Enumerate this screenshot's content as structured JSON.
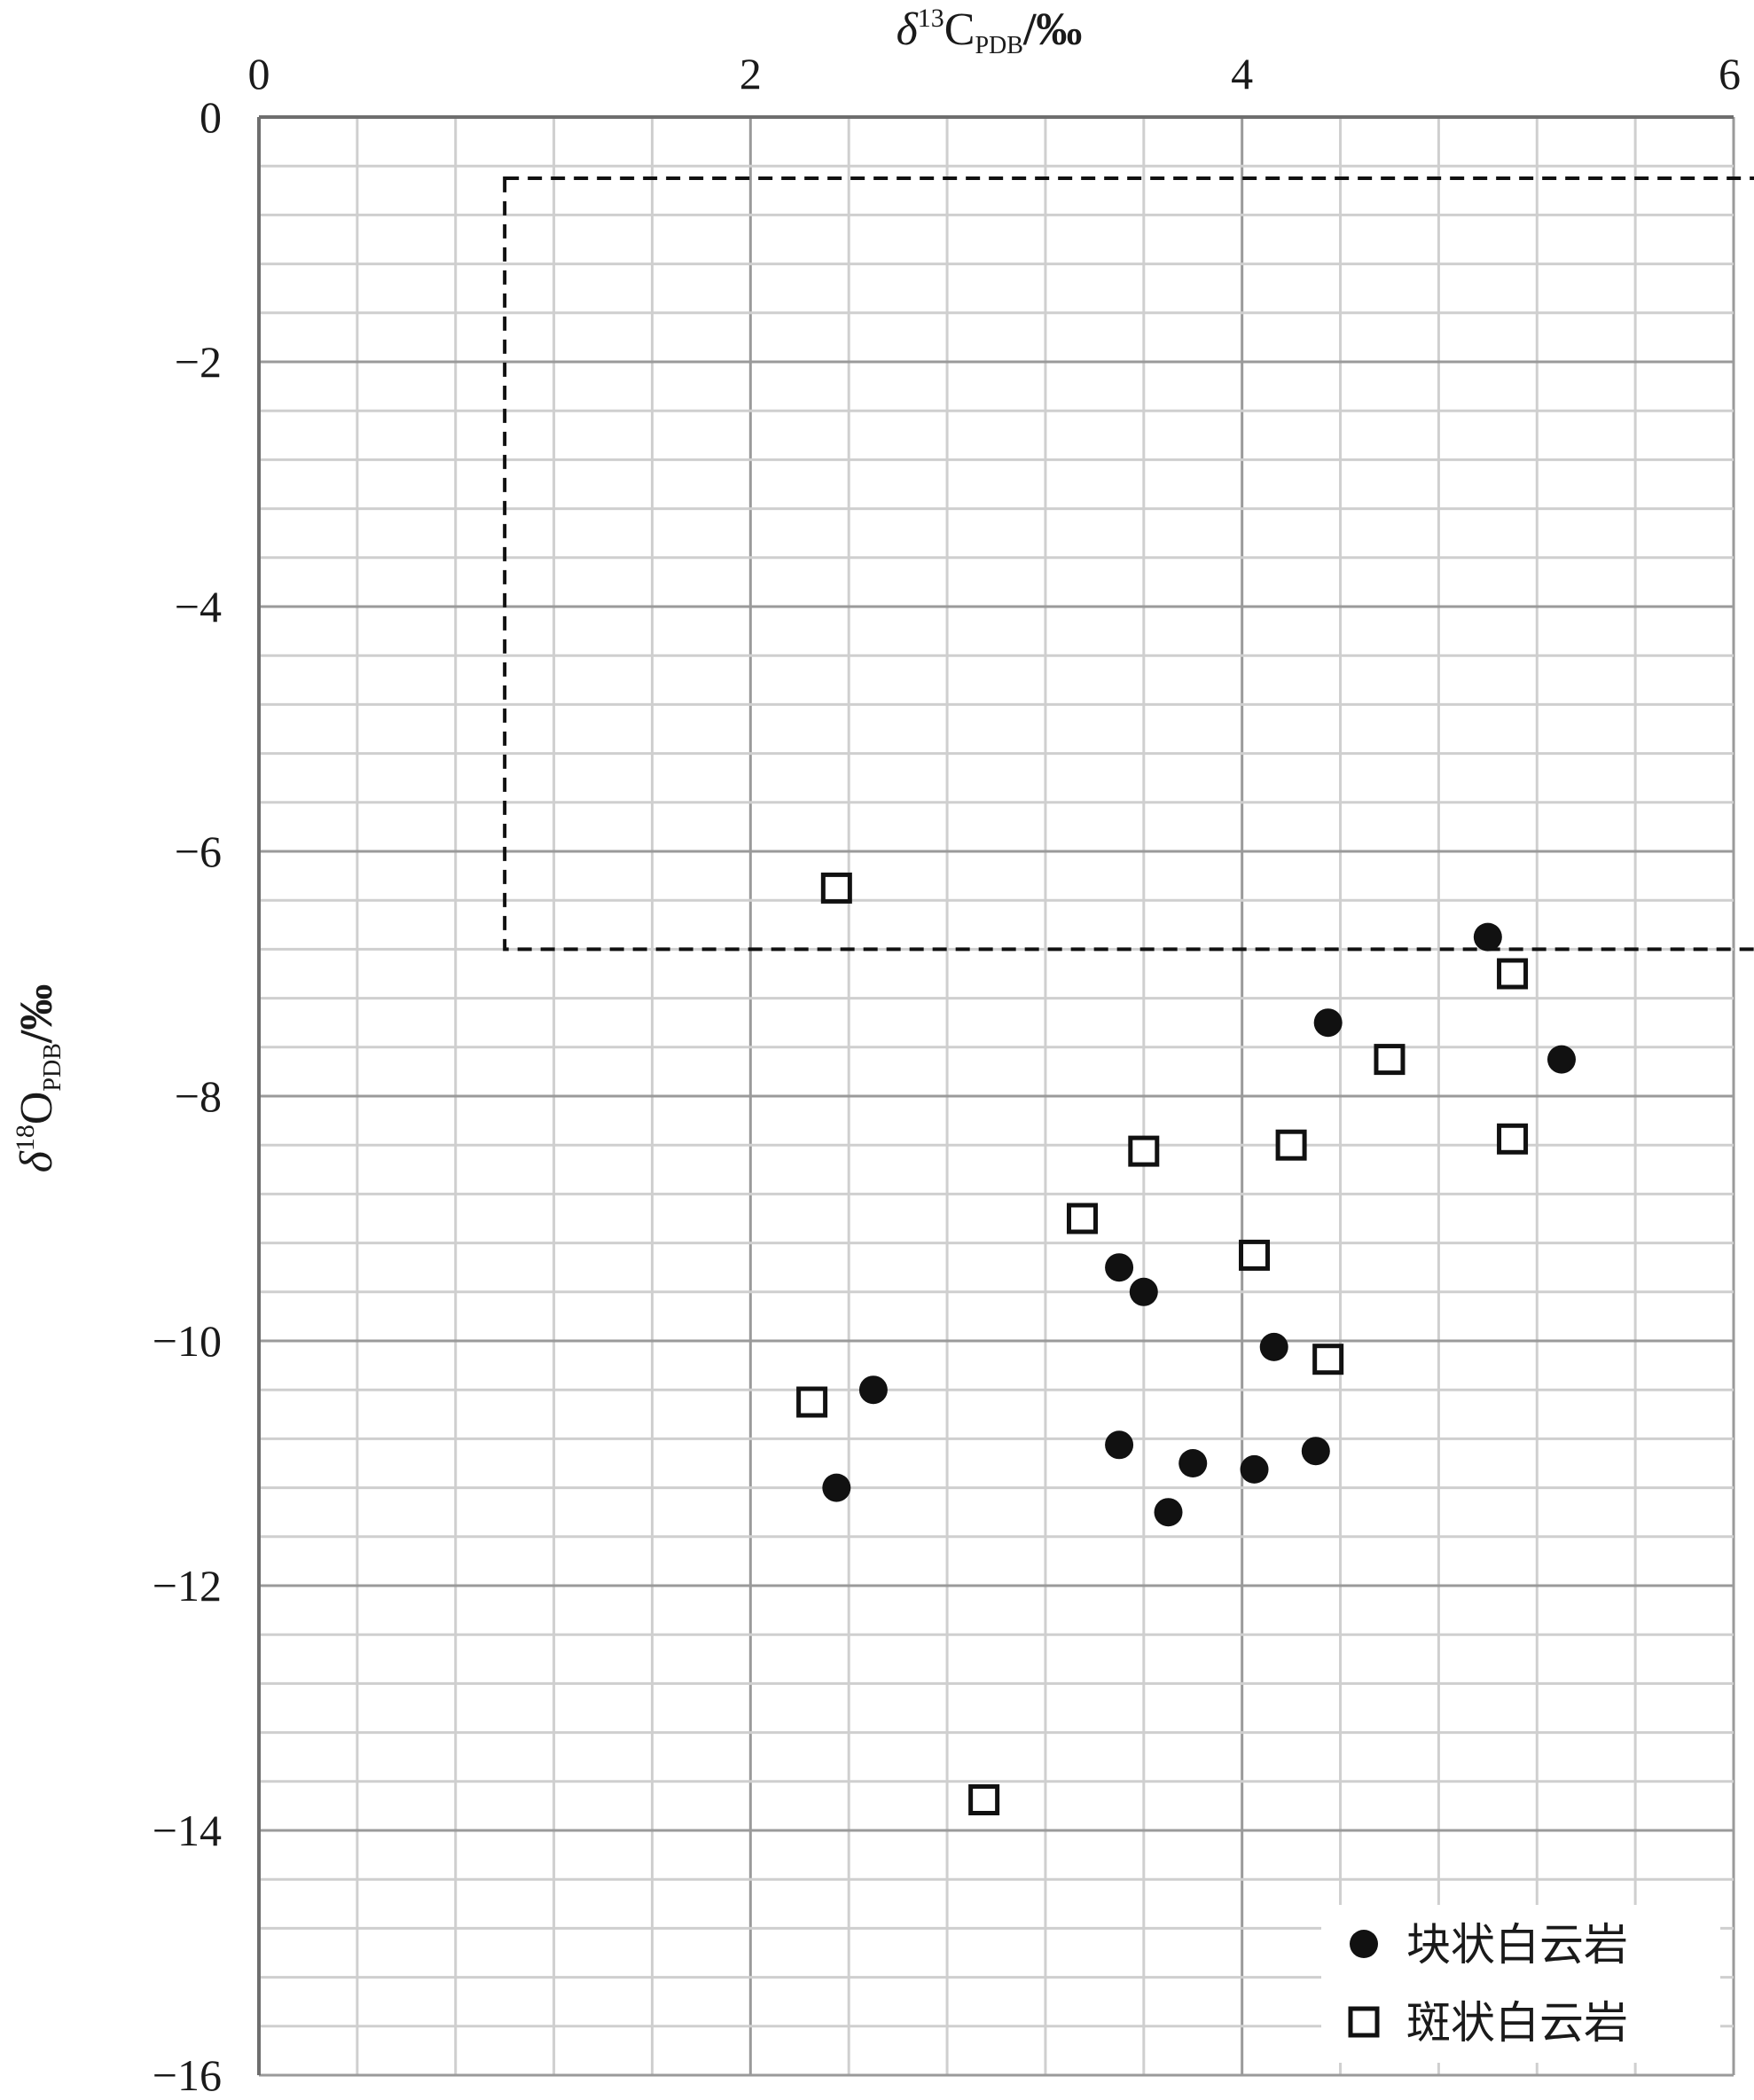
{
  "chart_data": {
    "type": "scatter",
    "title": "",
    "x_axis": {
      "label_prefix": "δ",
      "label_sup": "13",
      "label_main": "C",
      "label_sub": "PDB",
      "label_suffix": "/‰",
      "position": "top",
      "range": [
        0,
        6
      ],
      "ticks": [
        0,
        2,
        4,
        6
      ],
      "tick_labels": [
        "0",
        "2",
        "4",
        "6"
      ],
      "minor_step": 0.4
    },
    "y_axis": {
      "label_prefix": "δ",
      "label_sup": "18",
      "label_main": "O",
      "label_sub": "PDB",
      "label_suffix": "/‰",
      "position": "left",
      "range": [
        -16,
        0
      ],
      "ticks": [
        0,
        -2,
        -4,
        -6,
        -8,
        -10,
        -12,
        -14,
        -16
      ],
      "tick_labels": [
        "0",
        "−2",
        "−4",
        "−6",
        "−8",
        "−10",
        "−12",
        "−14",
        "−16"
      ],
      "minor_step": 0.4
    },
    "grid": true,
    "legend": {
      "placement": "bottom-right"
    },
    "reference_region": {
      "style": "dashed-rectangle",
      "x_range": [
        1.0,
        6.1
      ],
      "y_range": [
        -6.8,
        -0.5
      ]
    },
    "series": [
      {
        "name": "块状白云岩",
        "marker": "filled-circle",
        "color": "#111111",
        "points": [
          {
            "x": 5.0,
            "y": -6.7
          },
          {
            "x": 4.35,
            "y": -7.4
          },
          {
            "x": 5.3,
            "y": -7.7
          },
          {
            "x": 3.5,
            "y": -9.4
          },
          {
            "x": 3.6,
            "y": -9.6
          },
          {
            "x": 4.13,
            "y": -10.05
          },
          {
            "x": 2.5,
            "y": -10.4
          },
          {
            "x": 2.35,
            "y": -11.2
          },
          {
            "x": 3.5,
            "y": -10.85
          },
          {
            "x": 3.8,
            "y": -11.0
          },
          {
            "x": 3.7,
            "y": -11.4
          },
          {
            "x": 4.05,
            "y": -11.05
          },
          {
            "x": 4.3,
            "y": -10.9
          }
        ]
      },
      {
        "name": "斑状白云岩",
        "marker": "open-square",
        "color": "#111111",
        "points": [
          {
            "x": 2.35,
            "y": -6.3
          },
          {
            "x": 5.1,
            "y": -7.0
          },
          {
            "x": 4.6,
            "y": -7.7
          },
          {
            "x": 3.6,
            "y": -8.45
          },
          {
            "x": 4.2,
            "y": -8.4
          },
          {
            "x": 5.1,
            "y": -8.35
          },
          {
            "x": 3.35,
            "y": -9.0
          },
          {
            "x": 4.05,
            "y": -9.3
          },
          {
            "x": 4.35,
            "y": -10.15
          },
          {
            "x": 2.25,
            "y": -10.5
          },
          {
            "x": 2.95,
            "y": -13.75
          }
        ]
      }
    ]
  }
}
